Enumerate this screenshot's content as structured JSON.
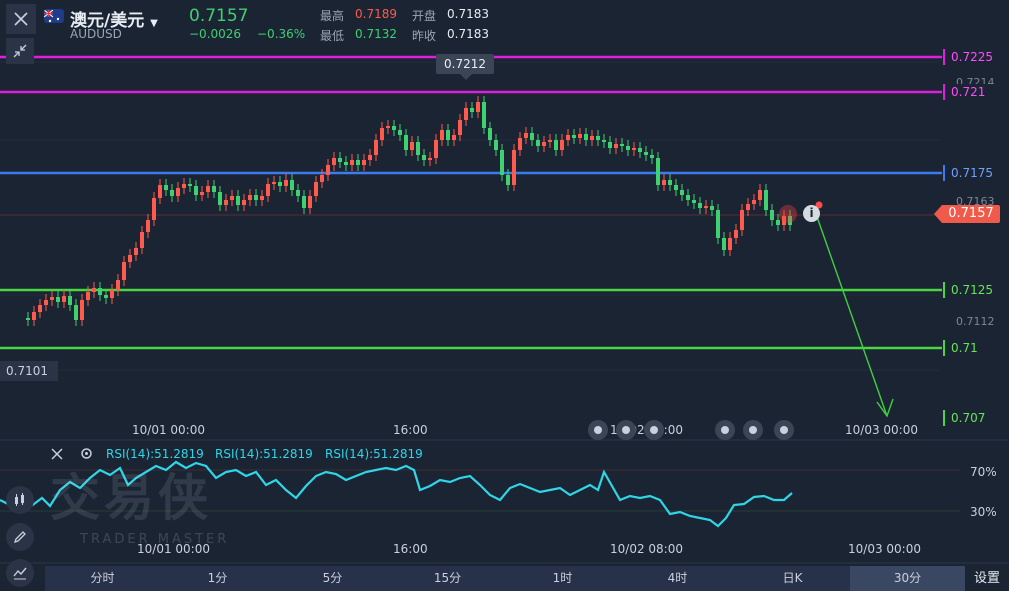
{
  "header": {
    "symbol_name": "澳元/美元",
    "symbol_code": "AUDUSD",
    "price": "0.7157",
    "change": "−0.0026",
    "change_pct": "−0.36%",
    "high_label": "最高",
    "high_value": "0.7189",
    "low_label": "最低",
    "low_value": "0.7132",
    "open_label": "开盘",
    "open_value": "0.7183",
    "prev_close_label": "昨收",
    "prev_close_value": "0.7183"
  },
  "price_labels": {
    "peak": "0.7212",
    "axis_7214": "0.7214",
    "axis_7163": "0.7163",
    "axis_7112": "0.7112",
    "low_marker": "0.7101",
    "current": "0.7157"
  },
  "levels": [
    {
      "name": "level-7225",
      "label": "0.7225",
      "color": "#e01ee0"
    },
    {
      "name": "level-721",
      "label": "0.721",
      "color": "#e01ee0"
    },
    {
      "name": "level-7175",
      "label": "0.7175",
      "color": "#3d7bf0"
    },
    {
      "name": "level-7125",
      "label": "0.7125",
      "color": "#4ad640"
    },
    {
      "name": "level-71",
      "label": "0.71",
      "color": "#4ad640"
    },
    {
      "name": "level-707",
      "label": "0.707",
      "color": "#4ad640"
    }
  ],
  "time_axis": [
    "10/01 00:00",
    "16:00",
    "10/02 08:00",
    "10/03 00:00"
  ],
  "rsi": {
    "label1": "RSI(14):51.2819",
    "label2": "RSI(14):51.2819",
    "label3": "RSI(14):51.2819",
    "upper": "70%",
    "lower": "30%"
  },
  "watermark": {
    "main": "交易侠",
    "sub": "TRADER MASTER"
  },
  "tabs": [
    "分时",
    "1分",
    "5分",
    "15分",
    "1时",
    "4时",
    "日K",
    "30分"
  ],
  "active_tab": "30分",
  "settings_label": "设置",
  "colors": {
    "up": "#ff5a4e",
    "down": "#3fd070",
    "bg": "#1b2433",
    "rsi": "#2fd6e8"
  }
}
